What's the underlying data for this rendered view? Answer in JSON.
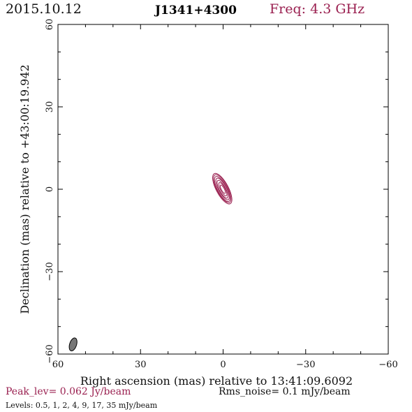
{
  "header": {
    "date": "2015.10.12",
    "source": "J1341+4300",
    "freq": "Freq: 4.3 GHz"
  },
  "footer": {
    "peak": "Peak_lev=  0.062 Jy/beam",
    "rms": "Rms_noise=  0.1 mJy/beam",
    "levels": "Levels: 0.5,   1,   2,   4,   9,   17,   35 mJy/beam"
  },
  "colors": {
    "contour": "#9a2050",
    "beam": "#777777",
    "axis": "#000000"
  },
  "chart_data": {
    "type": "contour",
    "xlabel": "Right ascension (mas) relative to 13:41:09.6092",
    "ylabel": "Declination (mas) relative to +43:00:19.942",
    "xlim": [
      60,
      -60
    ],
    "ylim": [
      -60,
      60
    ],
    "xticks": [
      "60",
      "30",
      "0",
      "−30",
      "−60"
    ],
    "yticks": [
      "60",
      "30",
      "0",
      "−30",
      "−60"
    ],
    "xtick_values": [
      60,
      30,
      0,
      -30,
      -60
    ],
    "ytick_values": [
      60,
      30,
      0,
      -30,
      -60
    ],
    "contour_levels_mJy": [
      0.5,
      1,
      2,
      4,
      9,
      17,
      35
    ],
    "contours": [
      {
        "cx": 0.3,
        "cy": 0.2,
        "semi_major": 6.2,
        "semi_minor": 2.2,
        "pa_deg": 28
      },
      {
        "cx": 0.3,
        "cy": 0.2,
        "semi_major": 5.7,
        "semi_minor": 1.95,
        "pa_deg": 28
      },
      {
        "cx": 0.3,
        "cy": 0.1,
        "semi_major": 5.1,
        "semi_minor": 1.7,
        "pa_deg": 28
      },
      {
        "cx": 0.2,
        "cy": 0.1,
        "semi_major": 4.4,
        "semi_minor": 1.45,
        "pa_deg": 28
      },
      {
        "cx": 0.2,
        "cy": 0.0,
        "semi_major": 3.6,
        "semi_minor": 1.15,
        "pa_deg": 28
      },
      {
        "cx": 0.1,
        "cy": 0.0,
        "semi_major": 2.7,
        "semi_minor": 0.85,
        "pa_deg": 28
      },
      {
        "cx": 0.1,
        "cy": 0.0,
        "semi_major": 1.7,
        "semi_minor": 0.55,
        "pa_deg": 28
      }
    ],
    "beam": {
      "cx": 54.5,
      "cy": -56.5,
      "semi_major": 2.2,
      "semi_minor": 1.0,
      "pa_deg": -18
    }
  }
}
